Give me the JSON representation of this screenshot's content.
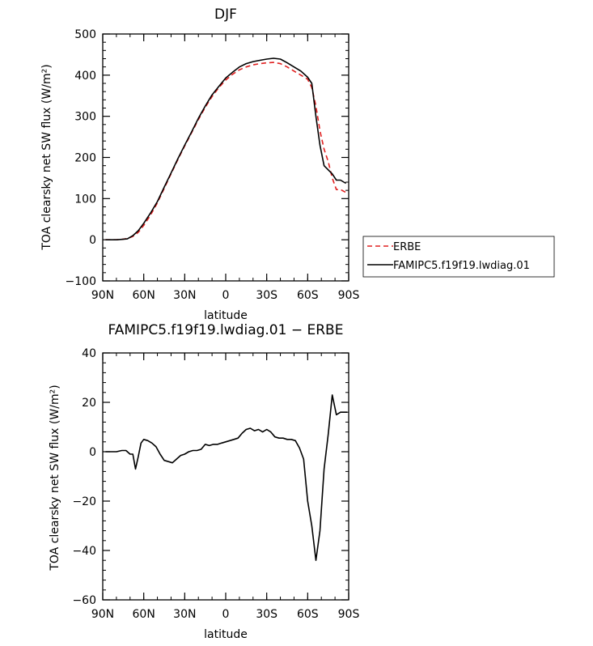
{
  "chart_data": [
    {
      "type": "line",
      "title": "DJF",
      "xlabel": "latitude",
      "ylabel": "TOA clearsky net SW flux (W/m²)",
      "xlim": [
        -90,
        90
      ],
      "ylim": [
        -100,
        500
      ],
      "x_ticks": [
        {
          "value": -90,
          "label": "90N"
        },
        {
          "value": -60,
          "label": "60N"
        },
        {
          "value": -30,
          "label": "30N"
        },
        {
          "value": 0,
          "label": "0"
        },
        {
          "value": 30,
          "label": "30S"
        },
        {
          "value": 60,
          "label": "60S"
        },
        {
          "value": 90,
          "label": "90S"
        }
      ],
      "y_ticks": [
        -100,
        0,
        100,
        200,
        300,
        400,
        500
      ],
      "legend_position": "right",
      "series": [
        {
          "name": "ERBE",
          "color": "#e02020",
          "dash": "dashed",
          "x": [
            -88,
            -84,
            -80,
            -76,
            -72,
            -68,
            -64,
            -60,
            -55,
            -50,
            -45,
            -40,
            -35,
            -30,
            -25,
            -20,
            -15,
            -10,
            -5,
            0,
            5,
            10,
            15,
            20,
            25,
            30,
            35,
            40,
            45,
            50,
            55,
            60,
            63,
            66,
            69,
            72,
            75,
            78,
            81,
            84,
            88
          ],
          "y": [
            0,
            0,
            0,
            1,
            3,
            8,
            18,
            35,
            60,
            90,
            125,
            160,
            195,
            228,
            260,
            292,
            322,
            348,
            370,
            388,
            402,
            413,
            420,
            425,
            428,
            430,
            431,
            428,
            420,
            410,
            400,
            390,
            370,
            325,
            265,
            220,
            190,
            150,
            122,
            122,
            115
          ]
        },
        {
          "name": "FAMIPC5.f19f19.lwdiag.01",
          "color": "#000000",
          "dash": "solid",
          "x": [
            -88,
            -84,
            -80,
            -76,
            -72,
            -68,
            -64,
            -60,
            -55,
            -50,
            -45,
            -40,
            -35,
            -30,
            -25,
            -20,
            -15,
            -10,
            -5,
            0,
            5,
            10,
            15,
            20,
            25,
            30,
            35,
            40,
            45,
            50,
            55,
            60,
            63,
            66,
            69,
            72,
            75,
            78,
            81,
            84,
            88
          ],
          "y": [
            0,
            0,
            0,
            1,
            2,
            10,
            22,
            40,
            65,
            93,
            128,
            162,
            197,
            230,
            262,
            295,
            325,
            352,
            373,
            393,
            407,
            420,
            428,
            433,
            436,
            439,
            441,
            439,
            430,
            420,
            410,
            395,
            380,
            300,
            230,
            180,
            170,
            160,
            145,
            145,
            137
          ]
        }
      ]
    },
    {
      "type": "line",
      "title": "FAMIPC5.f19f19.lwdiag.01 − ERBE",
      "xlabel": "latitude",
      "ylabel": "TOA clearsky net SW flux (W/m²)",
      "xlim": [
        -90,
        90
      ],
      "ylim": [
        -60,
        40
      ],
      "x_ticks": [
        {
          "value": -90,
          "label": "90N"
        },
        {
          "value": -60,
          "label": "60N"
        },
        {
          "value": -30,
          "label": "30N"
        },
        {
          "value": 0,
          "label": "0"
        },
        {
          "value": 30,
          "label": "30S"
        },
        {
          "value": 60,
          "label": "60S"
        },
        {
          "value": 90,
          "label": "90S"
        }
      ],
      "y_ticks": [
        -60,
        -40,
        -20,
        0,
        20,
        40
      ],
      "series": [
        {
          "name": "",
          "color": "#000000",
          "dash": "solid",
          "x": [
            -88,
            -84,
            -80,
            -76,
            -73,
            -70,
            -68,
            -66,
            -64,
            -62,
            -60,
            -57,
            -54,
            -51,
            -48,
            -45,
            -42,
            -39,
            -36,
            -33,
            -30,
            -27,
            -24,
            -21,
            -18,
            -15,
            -12,
            -9,
            -6,
            -3,
            0,
            3,
            6,
            9,
            12,
            15,
            18,
            21,
            24,
            27,
            30,
            33,
            36,
            39,
            42,
            45,
            48,
            51,
            54,
            57,
            60,
            63,
            66,
            69,
            72,
            75,
            78,
            81,
            84,
            87,
            89
          ],
          "y": [
            0,
            0,
            0,
            0.5,
            0.5,
            -1,
            -1,
            -7,
            -2,
            3.5,
            5,
            4.5,
            3.5,
            2,
            -1,
            -3.5,
            -4,
            -4.5,
            -3,
            -1.5,
            -1,
            0,
            0.5,
            0.5,
            1,
            3,
            2.5,
            3,
            3,
            3.5,
            4,
            4.5,
            5,
            5.5,
            7.5,
            9,
            9.5,
            8.5,
            9,
            8,
            9,
            8,
            6,
            5.5,
            5.5,
            5,
            5,
            4.5,
            1.5,
            -3,
            -20,
            -30,
            -44,
            -32,
            -7,
            7,
            23,
            15,
            16,
            16,
            16
          ]
        }
      ]
    }
  ]
}
